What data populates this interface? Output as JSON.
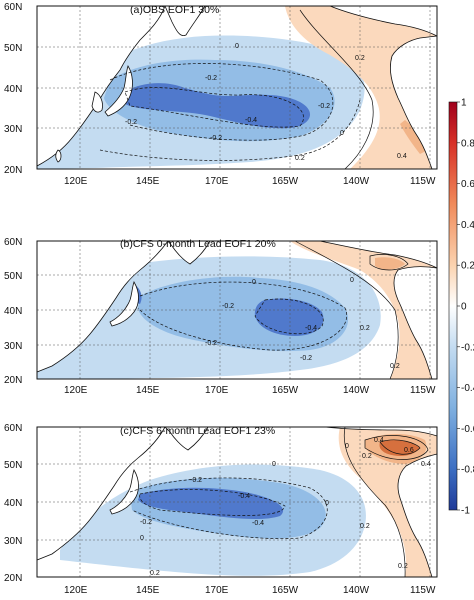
{
  "panels": [
    {
      "title": "(a)OBS  EOF1  30%",
      "lat_labels": [
        "60N",
        "50N",
        "40N",
        "30N",
        "20N"
      ],
      "lon_labels": [
        "120E",
        "145E",
        "170E",
        "165W",
        "140W",
        "115W"
      ],
      "contour_labels": [
        "-0.2",
        "0",
        "-0.2",
        "-0.4",
        "-0.2",
        "-0.2",
        "0.2",
        "0",
        "0.2",
        "0.4"
      ]
    },
    {
      "title": "(b)CFS  0-month Lead   EOF1   20%",
      "lat_labels": [
        "60N",
        "50N",
        "40N",
        "30N",
        "20N"
      ],
      "lon_labels": [
        "120E",
        "145E",
        "170E",
        "165W",
        "140W",
        "115W"
      ],
      "contour_labels": [
        "0",
        "-0.2",
        "-0.2",
        "-0.4",
        "-0.2",
        "0",
        "0.2",
        "0.2"
      ]
    },
    {
      "title": "(c)CFS  6-month Lead   EOF1    23%",
      "lat_labels": [
        "60N",
        "50N",
        "40N",
        "30N",
        "20N"
      ],
      "lon_labels": [
        "120E",
        "145E",
        "170E",
        "165W",
        "140W",
        "115W"
      ],
      "contour_labels": [
        "0",
        "0.4",
        "0.2",
        "0.6",
        "0.4",
        "0",
        "-0.2",
        "-0.4",
        "-0.4",
        "-0.2",
        "0",
        "0.2",
        "0",
        "0.2",
        "0.2"
      ]
    }
  ],
  "colorbar": {
    "ticks": [
      "1",
      "0.8",
      "0.6",
      "0.4",
      "0.2",
      "0",
      "-0.2",
      "-0.4",
      "-0.6",
      "-0.8",
      "-1"
    ],
    "range": [
      -1,
      1
    ]
  },
  "colors": {
    "light_blue": "#c4dcf1",
    "mid_blue": "#93bde6",
    "deep_blue": "#5079cc",
    "light_orange": "#fbd9bd",
    "mid_orange": "#f2b589",
    "deep_orange": "#d6703e",
    "land": "#ffffff",
    "coast": "#111111"
  }
}
